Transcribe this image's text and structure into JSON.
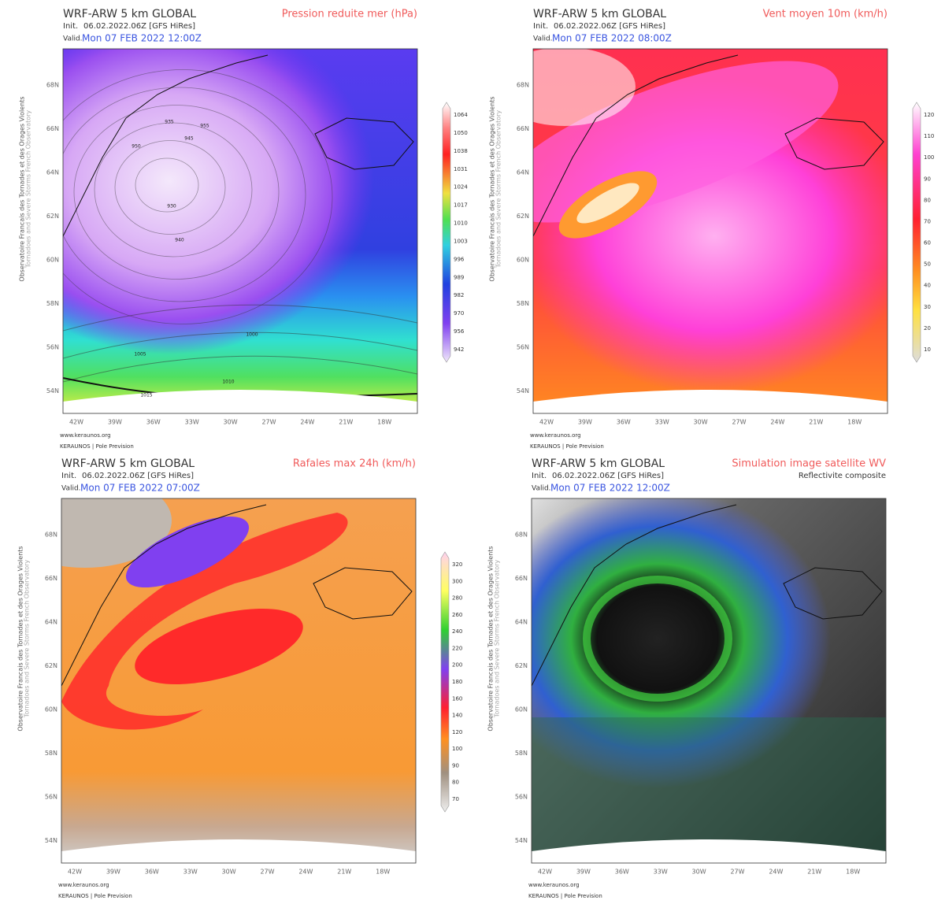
{
  "panels": [
    {
      "title": "WRF-ARW 5 km GLOBAL",
      "product": "Pression reduite mer (hPa)",
      "init_label": "Init.",
      "init": "06.02.2022.06Z [GFS HiRes]",
      "valid_label": "Valid.",
      "valid": "Mon 07 FEB 2022 12:00Z",
      "lat_labels": [
        "68N",
        "66N",
        "64N",
        "62N",
        "60N",
        "58N",
        "56N",
        "54N"
      ],
      "lon_labels": [
        "42W",
        "39W",
        "36W",
        "33W",
        "30W",
        "27W",
        "24W",
        "21W",
        "18W"
      ],
      "colorbar": [
        1064,
        1050,
        1038,
        1031,
        1024,
        1017,
        1010,
        1003,
        996,
        989,
        982,
        970,
        956,
        942
      ],
      "contour_labels": [
        "930",
        "935",
        "940",
        "945",
        "950",
        "955",
        "1000",
        "1005",
        "1010",
        "1015"
      ],
      "side_text": [
        "Observatoire Francais des Tornades et des Orages Violents",
        "Tornadoes and Severe Storms French Observatory"
      ],
      "footer": [
        "www.keraunos.org",
        "KERAUNOS | Pole Prevision"
      ]
    },
    {
      "title": "WRF-ARW 5 km GLOBAL",
      "product": "Vent moyen 10m (km/h)",
      "init_label": "Init.",
      "init": "06.02.2022.06Z [GFS HiRes]",
      "valid_label": "Valid.",
      "valid": "Mon 07 FEB 2022 08:00Z",
      "lat_labels": [
        "68N",
        "66N",
        "64N",
        "62N",
        "60N",
        "58N",
        "56N",
        "54N"
      ],
      "lon_labels": [
        "42W",
        "39W",
        "36W",
        "33W",
        "30W",
        "27W",
        "24W",
        "21W",
        "18W"
      ],
      "colorbar": [
        120,
        110,
        100,
        90,
        80,
        70,
        60,
        50,
        40,
        30,
        20,
        10
      ],
      "side_text": [
        "Observatoire Francais des Tornades et des Orages Violents",
        "Tornadoes and Severe Storms French Observatory"
      ],
      "footer": [
        "www.keraunos.org",
        "KERAUNOS | Pole Prevision"
      ]
    },
    {
      "title": "WRF-ARW 5 km GLOBAL",
      "product": "Rafales max 24h (km/h)",
      "init_label": "Init.",
      "init": "06.02.2022.06Z [GFS HiRes]",
      "valid_label": "Valid.",
      "valid": "Mon 07 FEB 2022 07:00Z",
      "lat_labels": [
        "68N",
        "66N",
        "64N",
        "62N",
        "60N",
        "58N",
        "56N",
        "54N"
      ],
      "lon_labels": [
        "42W",
        "39W",
        "36W",
        "33W",
        "30W",
        "27W",
        "24W",
        "21W",
        "18W"
      ],
      "colorbar": [
        320,
        300,
        280,
        260,
        240,
        220,
        200,
        180,
        160,
        140,
        120,
        100,
        90,
        80,
        70
      ],
      "side_text": [
        "Observatoire Francais des Tornades et des Orages Violents",
        "Tornadoes and Severe Storms French Observatory"
      ],
      "footer": [
        "www.keraunos.org",
        "KERAUNOS | Pole Prevision"
      ]
    },
    {
      "title": "WRF-ARW 5 km GLOBAL",
      "product": "Simulation image satellite WV",
      "subtitle": "Reflectivite composite",
      "init_label": "Init.",
      "init": "06.02.2022.06Z [GFS HiRes]",
      "valid_label": "Valid.",
      "valid": "Mon 07 FEB 2022 12:00Z",
      "lat_labels": [
        "68N",
        "66N",
        "64N",
        "62N",
        "60N",
        "58N",
        "56N",
        "54N"
      ],
      "lon_labels": [
        "42W",
        "39W",
        "36W",
        "33W",
        "30W",
        "27W",
        "24W",
        "21W",
        "18W"
      ],
      "side_text": [
        "Observatoire Francais des Tornades et des Orages Violents",
        "Tornadoes and Severe Storms French Observatory"
      ],
      "footer": [
        "www.keraunos.org",
        "KERAUNOS | Pole Prevision"
      ]
    }
  ]
}
